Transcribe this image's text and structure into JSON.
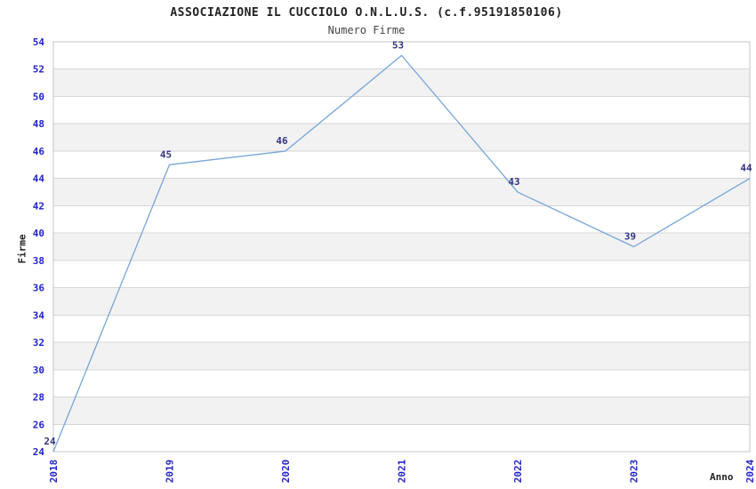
{
  "chart_data": {
    "type": "line",
    "title": "ASSOCIAZIONE IL CUCCIOLO O.N.L.U.S. (c.f.95191850106)",
    "subtitle": "Numero Firme",
    "xlabel": "Anno",
    "ylabel": "Firme",
    "categories": [
      "2018",
      "2019",
      "2020",
      "2021",
      "2022",
      "2023",
      "2024"
    ],
    "values": [
      24,
      45,
      46,
      53,
      43,
      39,
      44
    ],
    "ylim": [
      24,
      54
    ],
    "yticks": [
      24,
      26,
      28,
      30,
      32,
      34,
      36,
      38,
      40,
      42,
      44,
      46,
      48,
      50,
      52,
      54
    ],
    "grid": "horizontal-bands",
    "legend": "none",
    "x_tick_rotation": -90,
    "colors": {
      "background": "#ffffff",
      "band_alt": "#f2f2f2",
      "band_main": "#ffffff",
      "gridline": "#d6d6d6",
      "plot_border": "#c6c6c6",
      "line": "#76a5d8",
      "tick_label": "#2222cc",
      "value_label": "#333380",
      "title_text": "#222222",
      "axis_title_text": "#222222"
    }
  }
}
